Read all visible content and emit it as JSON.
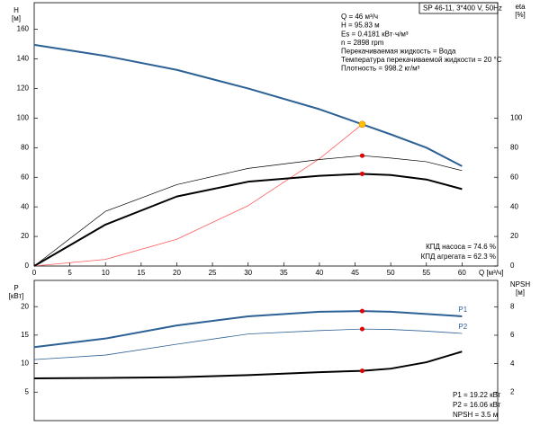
{
  "chart_data": [
    {
      "type": "line",
      "title": "SP 46-11, 3*400 V, 50Hz",
      "y_label": [
        "H",
        "[м]"
      ],
      "y2_label": [
        "eta",
        "[%]"
      ],
      "x_label": "Q [м³/ч]",
      "annotations": [
        "Q = 46 м³/ч",
        "H = 95.83 м",
        "Es = 0.4181 кВт·ч/м³",
        "n = 2898 rpm",
        "Перекачиваемая жидкость = Вода",
        "Температура перекачиваемой жидкости = 20 °C",
        "Плотность = 998.2 кг/м³"
      ],
      "result_labels": [
        "КПД насоса = 74.6 %",
        "КПД агрегата = 62.3 %"
      ],
      "x": [
        0,
        10,
        20,
        30,
        40,
        46,
        50,
        55,
        60
      ],
      "series": [
        {
          "color": "#2d6195",
          "width": 2,
          "values": [
            149.5,
            142,
            132.6,
            120,
            106,
            95.83,
            89,
            80,
            67.5
          ]
        },
        {
          "color": "#ff5a5a",
          "width": 0.8,
          "values": [
            0,
            4.5,
            18.1,
            40.8,
            72.5,
            95.83,
            null,
            null,
            null
          ]
        },
        {
          "color": "#000000",
          "width": 0.7,
          "axis": "y2",
          "values": [
            0,
            37,
            55,
            66,
            72,
            74.6,
            73,
            70.5,
            64.5
          ]
        },
        {
          "color": "#000000",
          "width": 2,
          "axis": "y2",
          "values": [
            0,
            28,
            47,
            57,
            61,
            62.3,
            61.5,
            58.5,
            52
          ]
        }
      ],
      "markers": [
        {
          "x": 46,
          "y": 95.83,
          "color": "#ffc000"
        },
        {
          "x": 46,
          "y": 74.6,
          "color": "#e00000",
          "axis": "y2"
        },
        {
          "x": 46,
          "y": 62.3,
          "color": "#e00000",
          "axis": "y2"
        }
      ],
      "xlim": [
        0,
        65
      ],
      "xticks": [
        0,
        5,
        10,
        15,
        20,
        25,
        30,
        35,
        40,
        45,
        50,
        55,
        60
      ],
      "ylim": [
        0,
        178
      ],
      "yticks": [
        0,
        20,
        40,
        60,
        80,
        100,
        120,
        140,
        160
      ],
      "y2lim": [
        0,
        178
      ],
      "y2ticks": [
        0,
        20,
        40,
        60,
        80,
        100
      ],
      "grid": false
    },
    {
      "type": "line",
      "y_label": [
        "P",
        "[кВт]"
      ],
      "y2_label": [
        "NPSH",
        "[м]"
      ],
      "result_labels": [
        "P1 = 19.22 кВт",
        "P2 = 16.06 кВт",
        "NPSH = 3.5 м"
      ],
      "x": [
        0,
        10,
        20,
        30,
        40,
        46,
        50,
        55,
        60
      ],
      "series": [
        {
          "name": "P1",
          "color": "#2d6195",
          "width": 2,
          "values": [
            12.9,
            14.4,
            16.7,
            18.3,
            19.1,
            19.22,
            19.1,
            18.7,
            18.3
          ]
        },
        {
          "name": "P2",
          "color": "#2d6195",
          "width": 0.8,
          "values": [
            10.7,
            11.5,
            13.4,
            15.2,
            15.8,
            16.06,
            16,
            15.7,
            15.3
          ]
        },
        {
          "color": "#000000",
          "width": 2,
          "axis": "y2",
          "values": [
            2.97,
            3.0,
            3.05,
            3.2,
            3.4,
            3.5,
            3.65,
            4.1,
            4.85
          ]
        }
      ],
      "markers": [
        {
          "x": 46,
          "y": 19.22,
          "color": "#e00000"
        },
        {
          "x": 46,
          "y": 16.06,
          "color": "#e00000"
        },
        {
          "x": 46,
          "y": 3.5,
          "color": "#e00000",
          "axis": "y2"
        }
      ],
      "xlim": [
        0,
        65
      ],
      "ylim": [
        0,
        24.6
      ],
      "yticks": [
        5,
        10,
        15,
        20
      ],
      "y2lim": [
        0,
        9.85
      ],
      "y2ticks": [
        2,
        4,
        6,
        8
      ],
      "grid": false
    }
  ]
}
